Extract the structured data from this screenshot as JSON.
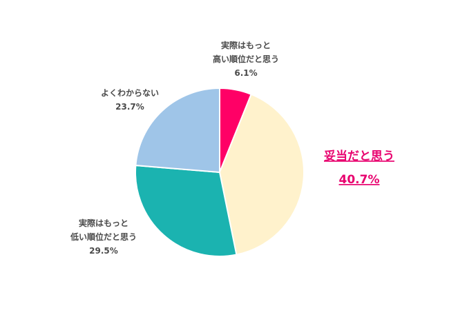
{
  "chart_data": {
    "type": "pie",
    "start_angle_deg": 0,
    "direction": "clockwise",
    "slices": [
      {
        "label_lines": [
          "実際はもっと",
          "高い順位だと思う"
        ],
        "value": 6.1,
        "value_label": "6.1%",
        "color": "#ff0066"
      },
      {
        "label_lines": [
          "妥当だと思う"
        ],
        "value": 40.7,
        "value_label": "40.7%",
        "color": "#fff2cc",
        "highlight": true,
        "highlight_color": "#e8006e"
      },
      {
        "label_lines": [
          "実際はもっと",
          "低い順位だと思う"
        ],
        "value": 29.5,
        "value_label": "29.5%",
        "color": "#1bb3b0"
      },
      {
        "label_lines": [
          "よくわからない"
        ],
        "value": 23.7,
        "value_label": "23.7%",
        "color": "#9fc5e8"
      }
    ]
  }
}
